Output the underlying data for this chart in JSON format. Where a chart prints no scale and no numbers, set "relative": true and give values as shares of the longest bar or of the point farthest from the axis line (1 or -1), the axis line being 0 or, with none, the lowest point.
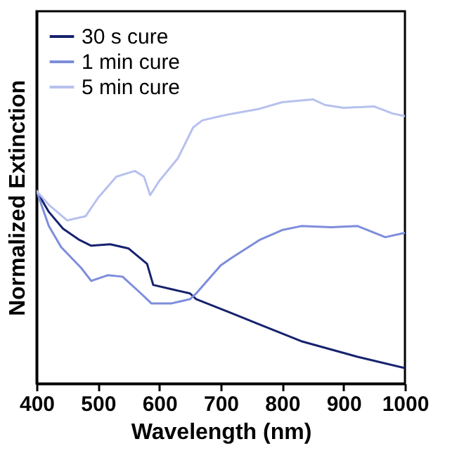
{
  "chart_data": {
    "type": "line",
    "xlabel": "Wavelength (nm)",
    "ylabel": "Normalized Extinction",
    "relative": true,
    "xlim": [
      400,
      1000
    ],
    "xticks": [
      400,
      500,
      600,
      700,
      800,
      900,
      1000
    ],
    "grid": false,
    "legend": "top left",
    "marker": "none",
    "line_style": "solid",
    "series": [
      {
        "name": "30 s cure",
        "color": "#16226e",
        "x": [
          400,
          420,
          443,
          470,
          489,
          520,
          550,
          580,
          590,
          620,
          650,
          660,
          717,
          763,
          831,
          923,
          1000
        ],
        "values": [
          0.678,
          0.604,
          0.545,
          0.505,
          0.485,
          0.49,
          0.475,
          0.421,
          0.347,
          0.332,
          0.317,
          0.297,
          0.248,
          0.208,
          0.149,
          0.094,
          0.054
        ]
      },
      {
        "name": "1 min cure",
        "color": "#7d8ddb",
        "x": [
          400,
          420,
          440,
          473,
          489,
          516,
          540,
          570,
          587,
          620,
          650,
          660,
          700,
          717,
          763,
          800,
          831,
          880,
          923,
          968,
          1000
        ],
        "values": [
          0.678,
          0.554,
          0.48,
          0.406,
          0.361,
          0.381,
          0.376,
          0.317,
          0.282,
          0.282,
          0.297,
          0.317,
          0.416,
          0.441,
          0.505,
          0.54,
          0.554,
          0.55,
          0.554,
          0.515,
          0.53
        ]
      },
      {
        "name": "5 min cure",
        "color": "#b7c1ee",
        "x": [
          400,
          420,
          450,
          480,
          500,
          530,
          560,
          575,
          585,
          600,
          630,
          655,
          670,
          700,
          720,
          760,
          800,
          850,
          870,
          900,
          950,
          980,
          1000
        ],
        "values": [
          0.678,
          0.629,
          0.574,
          0.589,
          0.653,
          0.728,
          0.748,
          0.728,
          0.663,
          0.713,
          0.792,
          0.901,
          0.926,
          0.941,
          0.95,
          0.965,
          0.99,
          1.0,
          0.98,
          0.97,
          0.975,
          0.95,
          0.941
        ]
      }
    ]
  }
}
